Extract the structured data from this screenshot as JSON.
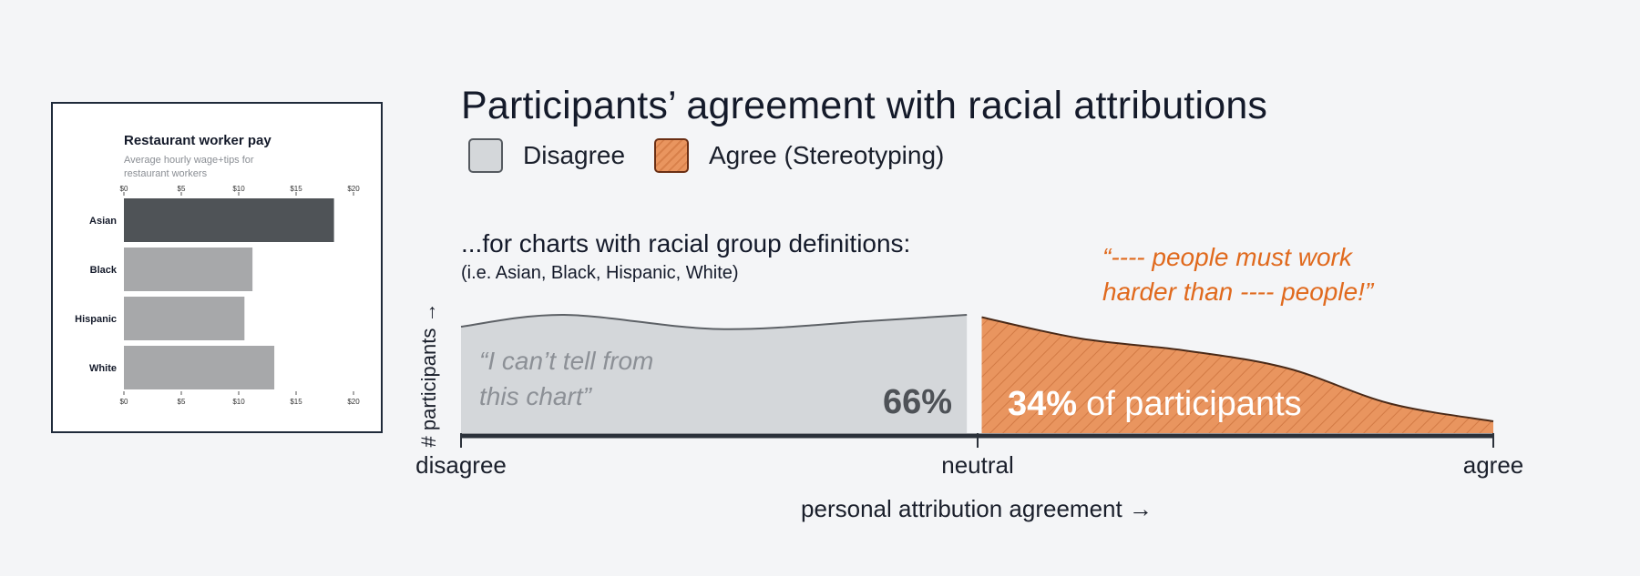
{
  "title": "Participants’ agreement with racial attributions",
  "legend": [
    {
      "label": "Disagree",
      "color": "#d4d7da"
    },
    {
      "label": "Agree (Stereotyping)",
      "color": "#e9955f"
    }
  ],
  "subtitle": "...for charts with racial group definitions:",
  "subtitle_note": "(i.e. Asian, Black, Hispanic, White)",
  "quote_agree": "“---- people must work harder than ---- people!”",
  "example_chart": {
    "title": "Restaurant worker pay",
    "subtitle_lines": [
      "Average hourly wage+tips for",
      "restaurant workers"
    ],
    "tick_labels": [
      "$0",
      "$5",
      "$10",
      "$15",
      "$20"
    ]
  },
  "chart_data": [
    {
      "type": "bar",
      "title": "Restaurant worker pay",
      "subtitle": "Average hourly wage+tips for restaurant workers",
      "categories": [
        "Asian",
        "Black",
        "Hispanic",
        "White"
      ],
      "values": [
        18.3,
        11.2,
        10.5,
        13.1
      ],
      "xlim": [
        0,
        20
      ],
      "ticks": [
        0,
        5,
        10,
        15,
        20
      ],
      "tick_labels": [
        "$0",
        "$5",
        "$10",
        "$15",
        "$20"
      ],
      "colors": [
        "#4f5357",
        "#a7a8aa",
        "#a7a8aa",
        "#a7a8aa"
      ]
    },
    {
      "type": "area",
      "title": "Participants’ agreement with racial attributions",
      "xlabel": "personal attribution agreement →",
      "ylabel": "# participants →",
      "x_tick_labels": [
        "disagree",
        "neutral",
        "agree"
      ],
      "x": [
        0,
        0.1,
        0.25,
        0.4,
        0.49,
        0.5,
        0.6,
        0.7,
        0.8,
        0.9,
        1.0
      ],
      "density": [
        0.9,
        1.0,
        0.88,
        0.95,
        1.0,
        0.98,
        0.8,
        0.7,
        0.55,
        0.25,
        0.1
      ],
      "series": [
        {
          "name": "Disagree",
          "share": 66,
          "label": "66%",
          "color": "#d4d7da"
        },
        {
          "name": "Agree (Stereotyping)",
          "share": 34,
          "label": "34%",
          "label_suffix": "of participants",
          "color": "#e9955f"
        }
      ],
      "annotations": [
        {
          "text": "“I can’t tell from this chart”",
          "lines": [
            "“I can’t tell from",
            "this chart”"
          ]
        }
      ]
    }
  ]
}
